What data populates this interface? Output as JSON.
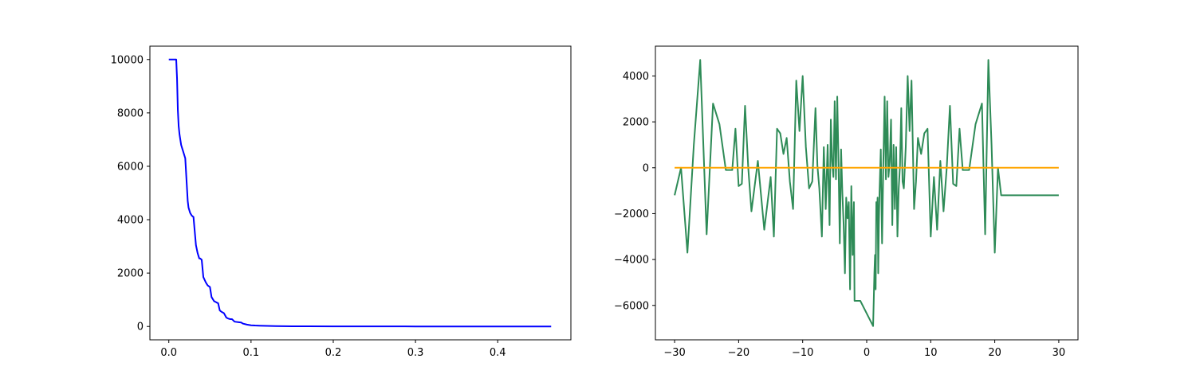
{
  "chart_data": [
    {
      "type": "line",
      "title": "",
      "xlabel": "",
      "ylabel": "",
      "xlim": [
        -0.023,
        0.489
      ],
      "ylim": [
        -500,
        10500
      ],
      "x_ticks": [
        0.0,
        0.1,
        0.2,
        0.3,
        0.4
      ],
      "x_tick_labels": [
        "0.0",
        "0.1",
        "0.2",
        "0.3",
        "0.4"
      ],
      "y_ticks": [
        0,
        2000,
        4000,
        6000,
        8000,
        10000
      ],
      "y_tick_labels": [
        "0",
        "2000",
        "4000",
        "6000",
        "8000",
        "10000"
      ],
      "grid": false,
      "series": [
        {
          "color": "#0000ff",
          "x": [
            0.0,
            0.009,
            0.01,
            0.011,
            0.012,
            0.013,
            0.015,
            0.017,
            0.02,
            0.023,
            0.024,
            0.025,
            0.026,
            0.027,
            0.028,
            0.03,
            0.033,
            0.035,
            0.036,
            0.037,
            0.038,
            0.04,
            0.042,
            0.045,
            0.047,
            0.048,
            0.049,
            0.05,
            0.052,
            0.055,
            0.058,
            0.06,
            0.062,
            0.064,
            0.067,
            0.07,
            0.072,
            0.074,
            0.077,
            0.08,
            0.085,
            0.088,
            0.09,
            0.095,
            0.1,
            0.105,
            0.11,
            0.12,
            0.13,
            0.14,
            0.15,
            0.17,
            0.2,
            0.25,
            0.3,
            0.35,
            0.4,
            0.465
          ],
          "y": [
            10000,
            10000,
            9300,
            8100,
            7500,
            7200,
            6800,
            6600,
            6300,
            4700,
            4450,
            4350,
            4250,
            4200,
            4150,
            4100,
            3050,
            2750,
            2650,
            2550,
            2550,
            2500,
            1850,
            1650,
            1550,
            1520,
            1500,
            1480,
            1100,
            950,
            900,
            870,
            600,
            550,
            500,
            330,
            300,
            280,
            270,
            180,
            160,
            150,
            110,
            70,
            45,
            35,
            30,
            20,
            15,
            10,
            8,
            5,
            3,
            2,
            1,
            1,
            1,
            0
          ]
        }
      ]
    },
    {
      "type": "line",
      "title": "",
      "xlabel": "",
      "ylabel": "",
      "xlim": [
        -33,
        33
      ],
      "ylim": [
        -7500,
        5300
      ],
      "x_ticks": [
        -30,
        -20,
        -10,
        0,
        10,
        20,
        30
      ],
      "x_tick_labels": [
        "−30",
        "−20",
        "−10",
        "0",
        "10",
        "20",
        "30"
      ],
      "y_ticks": [
        -6000,
        -4000,
        -2000,
        0,
        2000,
        4000
      ],
      "y_tick_labels": [
        "−6000",
        "−4000",
        "−2000",
        "0",
        "2000",
        "4000"
      ],
      "grid": false,
      "series": [
        {
          "color": "#2e8b57",
          "x": [
            -30,
            -29,
            -28,
            -27,
            -26,
            -25,
            -24,
            -23,
            -22,
            -21,
            -20.5,
            -20,
            -19.5,
            -19,
            -18.5,
            -18,
            -17,
            -16,
            -15,
            -14.5,
            -14,
            -13.5,
            -13,
            -12.5,
            -12,
            -11.5,
            -11,
            -10.5,
            -10,
            -9.5,
            -9,
            -8.5,
            -8,
            -7.7,
            -7.4,
            -7,
            -6.7,
            -6.4,
            -6.1,
            -5.8,
            -5.6,
            -5.4,
            -5.2,
            -5,
            -4.8,
            -4.6,
            -4.4,
            -4.2,
            -4,
            -3.8,
            -3.6,
            -3.4,
            -3.2,
            -3,
            -2.8,
            -2.6,
            -2.4,
            -2.2,
            -2,
            -1.9,
            -1.8,
            -1.7,
            -1.6,
            -1.5,
            -1.4,
            -1.3,
            -1.2,
            -1.1,
            -1,
            1,
            1.1,
            1.2,
            1.3,
            1.4,
            1.5,
            1.6,
            1.7,
            1.8,
            1.9,
            2,
            2.2,
            2.4,
            2.6,
            2.8,
            3,
            3.2,
            3.4,
            3.6,
            3.8,
            4,
            4.2,
            4.4,
            4.6,
            4.8,
            5,
            5.2,
            5.4,
            5.6,
            5.8,
            6.1,
            6.4,
            6.7,
            7,
            7.4,
            7.7,
            8,
            8.5,
            9,
            9.5,
            10,
            10.5,
            11,
            11.5,
            12,
            12.5,
            13,
            13.5,
            14,
            14.5,
            15,
            16,
            17,
            18,
            18.5,
            19,
            19.5,
            20,
            20.5,
            21,
            22,
            23,
            24,
            25,
            26,
            27,
            28,
            29,
            30
          ],
          "y": [
            -1200,
            0,
            -3700,
            1000,
            4700,
            -2900,
            2800,
            1900,
            -100,
            -100,
            1700,
            -800,
            -700,
            2700,
            0,
            -1900,
            300,
            -2700,
            -400,
            -3000,
            1700,
            1500,
            600,
            1300,
            -600,
            -1800,
            3800,
            1600,
            4000,
            900,
            -900,
            -600,
            2600,
            100,
            -900,
            -3000,
            900,
            -1800,
            1000,
            -2500,
            2100,
            300,
            -400,
            2900,
            -500,
            3100,
            200,
            -3300,
            800,
            -1100,
            -2500,
            -4600,
            -1300,
            -2200,
            -1500,
            -5300,
            -800,
            -3800,
            -1500,
            -5800,
            -5800,
            -5800,
            -5800,
            -5800,
            -5800,
            -5800,
            -5800,
            -5800,
            -5800,
            -6900,
            -5800,
            -4600,
            -3800,
            -5300,
            -1500,
            -2200,
            -1300,
            -4600,
            -2500,
            -1100,
            800,
            -3300,
            200,
            3100,
            -500,
            2900,
            -400,
            300,
            2100,
            -2500,
            1000,
            -1800,
            900,
            -3000,
            -900,
            100,
            2600,
            -600,
            -900,
            900,
            4000,
            1600,
            3800,
            -1800,
            -600,
            1300,
            600,
            1500,
            1700,
            -3000,
            -400,
            -2700,
            300,
            -1900,
            0,
            2700,
            -700,
            -800,
            1700,
            -100,
            -100,
            1900,
            2800,
            -2900,
            4700,
            1000,
            -3700,
            0,
            -1200,
            -1200,
            -1200,
            -1200,
            -1200,
            -1200,
            -1200,
            -1200,
            -1200,
            -1200
          ]
        },
        {
          "color": "#ffa500",
          "x": [
            -30,
            30
          ],
          "y": [
            0,
            0
          ]
        }
      ]
    }
  ]
}
